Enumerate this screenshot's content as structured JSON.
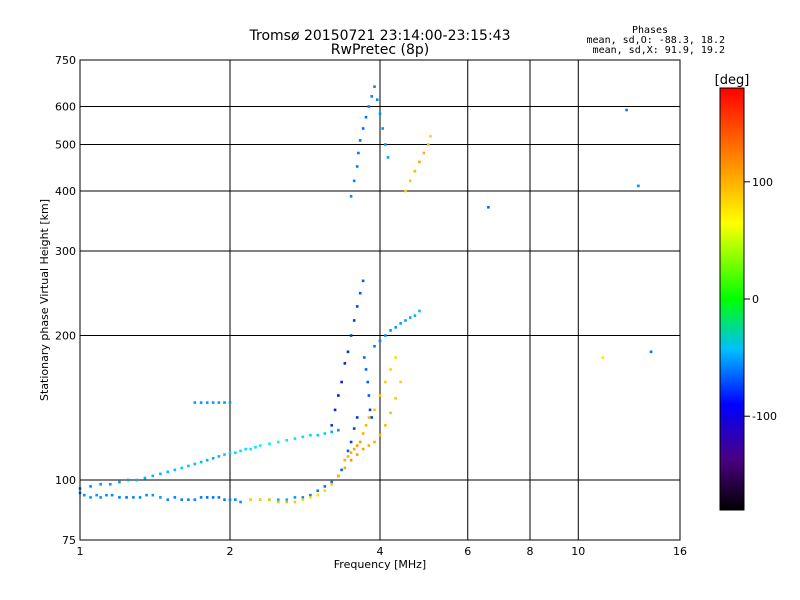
{
  "chart_data": {
    "type": "scatter",
    "title": "Tromsø 20150721 23:14:00-23:15:43",
    "subtitle": "RwPretec (8p)",
    "xlabel": "Frequency [MHz]",
    "ylabel": "Stationary phase Virtual Height [km]",
    "x_scale": "log",
    "y_scale": "log",
    "xlim": [
      1,
      16
    ],
    "ylim": [
      75,
      750
    ],
    "x_ticks": [
      1,
      2,
      4,
      6,
      8,
      10,
      16
    ],
    "y_ticks": [
      75,
      100,
      200,
      300,
      400,
      500,
      600,
      750
    ],
    "grid": true,
    "stats_header": "Phases",
    "stats_o": "mean, sd,O: -88.3, 18.2",
    "stats_x": "mean, sd,X:  91.9, 19.2",
    "colorbar": {
      "label": "[deg]",
      "range": [
        -180,
        180
      ],
      "ticks": [
        100,
        0,
        -100
      ],
      "colormap": "rainbow"
    },
    "series": [
      {
        "x": [
          1.0,
          1.02,
          1.05,
          1.08,
          1.1,
          1.13,
          1.16,
          1.2,
          1.24,
          1.28,
          1.32,
          1.36,
          1.4,
          1.45,
          1.5,
          1.55,
          1.6,
          1.65,
          1.7,
          1.75,
          1.8,
          1.85,
          1.9,
          1.95,
          2.0,
          2.05,
          2.1,
          2.2,
          2.3,
          2.4,
          2.5,
          2.6,
          2.7,
          2.8,
          2.9,
          3.0,
          3.1,
          3.2,
          3.3,
          3.35,
          3.4,
          3.45,
          3.5,
          3.55,
          3.6
        ],
        "y": [
          94,
          93,
          92,
          93,
          92,
          93,
          93,
          92,
          92,
          92,
          92,
          93,
          93,
          92,
          91,
          92,
          91,
          91,
          91,
          92,
          92,
          92,
          92,
          91,
          91,
          91,
          90,
          91,
          91,
          91,
          91,
          91,
          92,
          92,
          93,
          95,
          97,
          99,
          102,
          105,
          110,
          115,
          120,
          128,
          135
        ],
        "phase": [
          -110,
          -108,
          -105,
          -104,
          -106,
          -110,
          -112,
          -115,
          -118,
          -112,
          -110,
          -108,
          -106,
          -104,
          -110,
          -112,
          -114,
          -112,
          -110,
          -115,
          -120,
          -118,
          -116,
          -114,
          -112,
          -110,
          -108,
          -106,
          -104,
          -102,
          -100,
          -100,
          -105,
          -110,
          -112,
          -115,
          -118,
          -120,
          -120,
          -122,
          -124,
          -126,
          -128,
          -130,
          -132
        ]
      },
      {
        "x": [
          1.0,
          1.05,
          1.1,
          1.15,
          1.2,
          1.25,
          1.3,
          1.35,
          1.4,
          1.45,
          1.5,
          1.55,
          1.6,
          1.65,
          1.7,
          1.75,
          1.8,
          1.85,
          1.9,
          1.95,
          2.0,
          2.05,
          2.1,
          2.15,
          2.2,
          2.25,
          2.3,
          2.4,
          2.5,
          2.6,
          2.7,
          2.8,
          2.9,
          3.0,
          3.1,
          3.2,
          3.3
        ],
        "y": [
          96,
          97,
          98,
          98,
          99,
          100,
          100,
          101,
          102,
          103,
          104,
          105,
          106,
          107,
          108,
          109,
          110,
          111,
          112,
          113,
          114,
          114,
          115,
          116,
          116,
          117,
          118,
          119,
          120,
          121,
          122,
          123,
          124,
          124,
          125,
          126,
          127
        ],
        "phase": [
          -112,
          -110,
          -108,
          -106,
          -105,
          -104,
          -100,
          -98,
          -96,
          -95,
          -94,
          -92,
          -90,
          -92,
          -94,
          -96,
          -98,
          -100,
          -95,
          -90,
          -88,
          -86,
          -84,
          -82,
          -80,
          -80,
          -78,
          -78,
          -78,
          -80,
          -82,
          -84,
          -86,
          -88,
          -90,
          -100,
          -110
        ]
      },
      {
        "x": [
          1.7,
          1.75,
          1.8,
          1.85,
          1.9,
          1.95,
          2.0
        ],
        "y": [
          145,
          145,
          145,
          145,
          145,
          145,
          145
        ],
        "phase": [
          -105,
          -105,
          -104,
          -104,
          -103,
          -104,
          -105
        ]
      },
      {
        "x": [
          2.2,
          2.3,
          2.4,
          2.5,
          2.6,
          2.7,
          2.8,
          2.9,
          3.0,
          3.1,
          3.2,
          3.3,
          3.4,
          3.5,
          3.6,
          3.7,
          3.8,
          3.9,
          4.0,
          4.1,
          4.2,
          4.3,
          4.4
        ],
        "y": [
          91,
          91,
          91,
          90,
          90,
          90,
          91,
          92,
          93,
          95,
          98,
          102,
          106,
          110,
          113,
          116,
          118,
          120,
          124,
          130,
          138,
          148,
          160
        ],
        "phase": [
          100,
          102,
          105,
          108,
          110,
          105,
          100,
          98,
          96,
          100,
          105,
          110,
          115,
          120,
          118,
          116,
          114,
          112,
          110,
          108,
          106,
          104,
          102
        ]
      },
      {
        "x": [
          3.4,
          3.45,
          3.5,
          3.55,
          3.6,
          3.65,
          3.7,
          3.75,
          3.8,
          3.9,
          4.0,
          4.1,
          4.2,
          4.3
        ],
        "y": [
          110,
          112,
          114,
          116,
          118,
          120,
          125,
          130,
          135,
          140,
          150,
          160,
          170,
          180
        ],
        "phase": [
          110,
          112,
          114,
          116,
          118,
          120,
          112,
          110,
          108,
          106,
          104,
          102,
          100,
          98
        ]
      },
      {
        "x": [
          3.2,
          3.25,
          3.3,
          3.35,
          3.4,
          3.45,
          3.5,
          3.55,
          3.6,
          3.65,
          3.7,
          3.72,
          3.75,
          3.78,
          3.8,
          3.82,
          3.85
        ],
        "y": [
          130,
          140,
          150,
          160,
          175,
          185,
          200,
          215,
          230,
          245,
          260,
          180,
          170,
          160,
          150,
          140,
          135
        ],
        "phase": [
          -130,
          -135,
          -140,
          -138,
          -136,
          -134,
          -132,
          -130,
          -128,
          -126,
          -125,
          -120,
          -122,
          -124,
          -126,
          -128,
          -130
        ]
      },
      {
        "x": [
          3.9,
          4.0,
          4.1,
          4.2,
          4.3,
          4.4,
          4.5,
          4.6,
          4.7,
          4.8
        ],
        "y": [
          190,
          195,
          200,
          205,
          208,
          212,
          215,
          218,
          220,
          225
        ],
        "phase": [
          -115,
          -112,
          -110,
          -108,
          -106,
          -104,
          -102,
          -100,
          -98,
          -95
        ]
      },
      {
        "x": [
          3.5,
          3.55,
          3.6,
          3.62,
          3.65,
          3.7,
          3.75,
          3.8,
          3.85,
          3.9,
          3.95,
          4.0,
          4.05,
          4.1,
          4.15
        ],
        "y": [
          390,
          420,
          450,
          480,
          510,
          540,
          570,
          600,
          630,
          660,
          620,
          580,
          540,
          500,
          470
        ],
        "phase": [
          -110,
          -112,
          -114,
          -116,
          -118,
          -120,
          -118,
          -116,
          -114,
          -112,
          -110,
          -108,
          -106,
          -104,
          -102
        ]
      },
      {
        "x": [
          4.5,
          4.6,
          4.7,
          4.8,
          4.9,
          5.0,
          5.05
        ],
        "y": [
          400,
          420,
          440,
          460,
          480,
          500,
          520
        ],
        "phase": [
          100,
          105,
          110,
          115,
          110,
          105,
          100
        ]
      },
      {
        "x": [
          6.6,
          12.5,
          13.2,
          14.0,
          11.2
        ],
        "y": [
          370,
          590,
          410,
          185,
          180
        ],
        "phase": [
          -120,
          -115,
          -110,
          -118,
          95
        ]
      }
    ]
  }
}
